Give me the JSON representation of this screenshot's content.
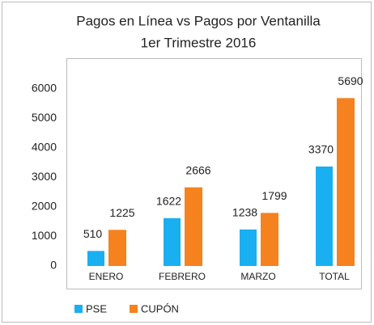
{
  "chart_data": {
    "type": "bar",
    "title": "Pagos en Línea vs Pagos por Ventanilla",
    "subtitle": "1er Trimestre 2016",
    "categories": [
      "ENERO",
      "FEBRERO",
      "MARZO",
      "TOTAL"
    ],
    "series": [
      {
        "name": "PSE",
        "color": "#1aaff0",
        "values": [
          510,
          1622,
          1238,
          3370
        ]
      },
      {
        "name": "CUPÓN",
        "color": "#f5821f",
        "values": [
          1225,
          2666,
          1799,
          5690
        ]
      }
    ],
    "ylim": [
      0,
      7000
    ],
    "yticks": [
      0,
      1000,
      2000,
      3000,
      4000,
      5000,
      6000
    ],
    "grid": false,
    "legend": "bottom"
  }
}
